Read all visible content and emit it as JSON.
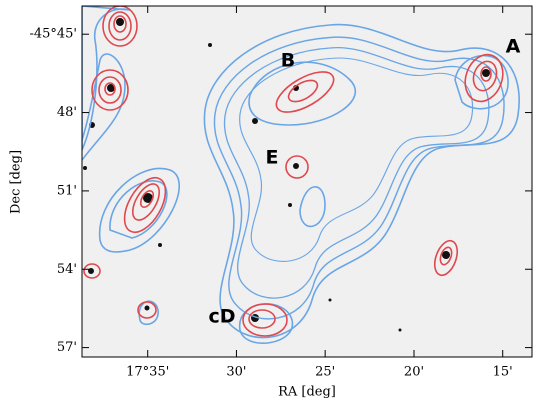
{
  "chart_data": {
    "type": "contour",
    "xlabel": "RA [deg]",
    "ylabel": "Dec [deg]",
    "xlim": [
      17.645,
      17.2225
    ],
    "xticks": [
      {
        "value": 17.5833,
        "label": "17°35'"
      },
      {
        "value": 17.5,
        "label": "30'"
      },
      {
        "value": 17.4167,
        "label": "25'"
      },
      {
        "value": 17.3333,
        "label": "20'"
      },
      {
        "value": 17.25,
        "label": "15'"
      }
    ],
    "ylim": [
      -45.956,
      -45.732
    ],
    "yticks": [
      {
        "value": -45.75,
        "label": "-45°45'"
      },
      {
        "value": -45.8,
        "label": "48'"
      },
      {
        "value": -45.85,
        "label": "51'"
      },
      {
        "value": -45.9,
        "label": "54'"
      },
      {
        "value": -45.95,
        "label": "57'"
      }
    ],
    "annotations": [
      "A",
      "B",
      "E",
      "cD"
    ]
  }
}
